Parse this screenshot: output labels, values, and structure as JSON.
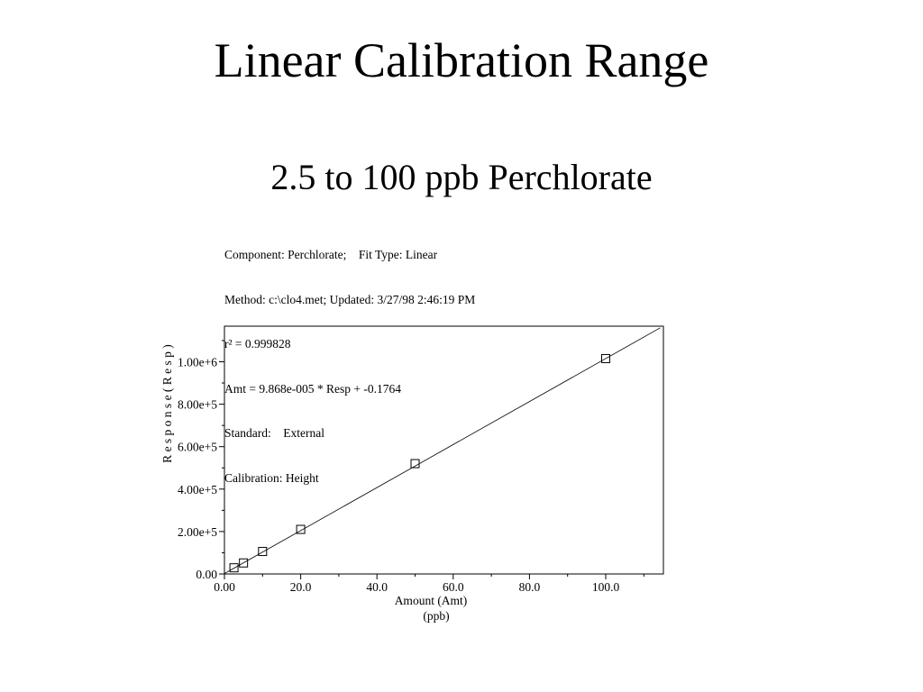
{
  "slide": {
    "title": "Linear Calibration Range",
    "subtitle": "2.5 to 100 ppb Perchlorate"
  },
  "info": {
    "component_line": "Component: Perchlorate;    Fit Type: Linear",
    "method_line": "Method: c:\\clo4.met; Updated: 3/27/98 2:46:19 PM",
    "r2_line": "r² = 0.999828",
    "equation_line": "Amt = 9.868e-005 * Resp + -0.1764",
    "standard_line": "Standard:    External",
    "calibration_line": "Calibration: Height"
  },
  "chart_data": {
    "type": "scatter",
    "title": "",
    "xlabel": "Amount (Amt)",
    "xunit": "(ppb)",
    "ylabel": "R e s p o n s e   ( R e s p )",
    "xlim": [
      0,
      115
    ],
    "ylim": [
      0,
      1160000
    ],
    "x_ticks": [
      0,
      20,
      40,
      60,
      80,
      100
    ],
    "x_tick_labels": [
      "0.00",
      "20.0",
      "40.0",
      "60.0",
      "80.0",
      "100.0"
    ],
    "y_ticks": [
      0,
      200000,
      400000,
      600000,
      800000,
      1000000
    ],
    "y_tick_labels": [
      "0.00",
      "2.00e+5",
      "4.00e+5",
      "6.00e+5",
      "8.00e+5",
      "1.00e+6"
    ],
    "points": [
      {
        "x": 2.5,
        "y": 29000
      },
      {
        "x": 5,
        "y": 52000
      },
      {
        "x": 10,
        "y": 106000
      },
      {
        "x": 20,
        "y": 210000
      },
      {
        "x": 50,
        "y": 520000
      },
      {
        "x": 100,
        "y": 1015000
      }
    ],
    "fit_line": {
      "slope": 10134,
      "intercept": 1788
    },
    "grid": false,
    "legend": "none"
  }
}
